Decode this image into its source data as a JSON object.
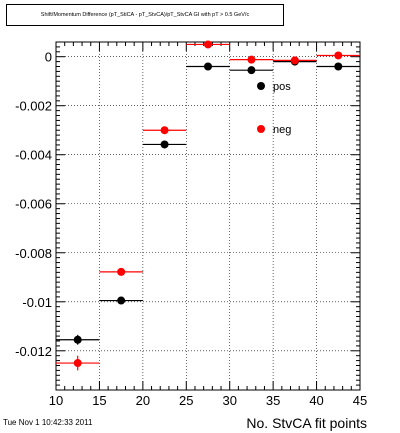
{
  "chart_data": {
    "type": "scatter",
    "title": "Shift/Momentum Difference (pT_StiCA - pT_StvCA)/pT_StvCA GI with pT > 0.5 GeV/c",
    "xlabel": "No. StvCA fit points",
    "ylabel": "",
    "xlim": [
      10,
      45
    ],
    "ylim": [
      -0.0136,
      0.0006
    ],
    "x_ticks": [
      10,
      15,
      20,
      25,
      30,
      35,
      40,
      45
    ],
    "x_tick_labels": [
      "10",
      "15",
      "20",
      "25",
      "30",
      "35",
      "40",
      "45"
    ],
    "y_ticks": [
      0,
      -0.002,
      -0.004,
      -0.006,
      -0.008,
      -0.01,
      -0.012
    ],
    "y_tick_labels": [
      "0",
      "-0.002",
      "-0.004",
      "-0.006",
      "-0.008",
      "-0.01",
      "-0.012"
    ],
    "grid": true,
    "legend_position": "top-right",
    "series": [
      {
        "name": "pos",
        "color": "#000000",
        "points": [
          {
            "x": 12.5,
            "y": -0.01155,
            "xerr": 2.5,
            "yerr": 0.0002
          },
          {
            "x": 17.5,
            "y": -0.00995,
            "xerr": 2.5,
            "yerr": 0.0001
          },
          {
            "x": 22.5,
            "y": -0.00358,
            "xerr": 2.5,
            "yerr": 0.0001
          },
          {
            "x": 27.5,
            "y": -0.0004,
            "xerr": 2.5,
            "yerr": 0.0001
          },
          {
            "x": 32.5,
            "y": -0.00055,
            "xerr": 2.5,
            "yerr": 0.0001
          },
          {
            "x": 37.5,
            "y": -0.0002,
            "xerr": 2.5,
            "yerr": 0.0001
          },
          {
            "x": 42.5,
            "y": -0.0004,
            "xerr": 2.5,
            "yerr": 0.0001
          }
        ]
      },
      {
        "name": "neg",
        "color": "#ff0000",
        "points": [
          {
            "x": 12.5,
            "y": -0.0125,
            "xerr": 2.5,
            "yerr": 0.0003
          },
          {
            "x": 17.5,
            "y": -0.00878,
            "xerr": 2.5,
            "yerr": 0.0001
          },
          {
            "x": 22.5,
            "y": -0.003,
            "xerr": 2.5,
            "yerr": 0.0001
          },
          {
            "x": 27.5,
            "y": 0.0005,
            "xerr": 2.5,
            "yerr": 0.0001
          },
          {
            "x": 32.5,
            "y": -0.00012,
            "xerr": 2.5,
            "yerr": 0.0001
          },
          {
            "x": 37.5,
            "y": -0.00015,
            "xerr": 2.5,
            "yerr": 0.0001
          },
          {
            "x": 42.5,
            "y": 5e-05,
            "xerr": 2.5,
            "yerr": 0.0001
          }
        ]
      }
    ]
  },
  "footer": {
    "timestamp": "Tue Nov  1 10:42:33 2011"
  }
}
